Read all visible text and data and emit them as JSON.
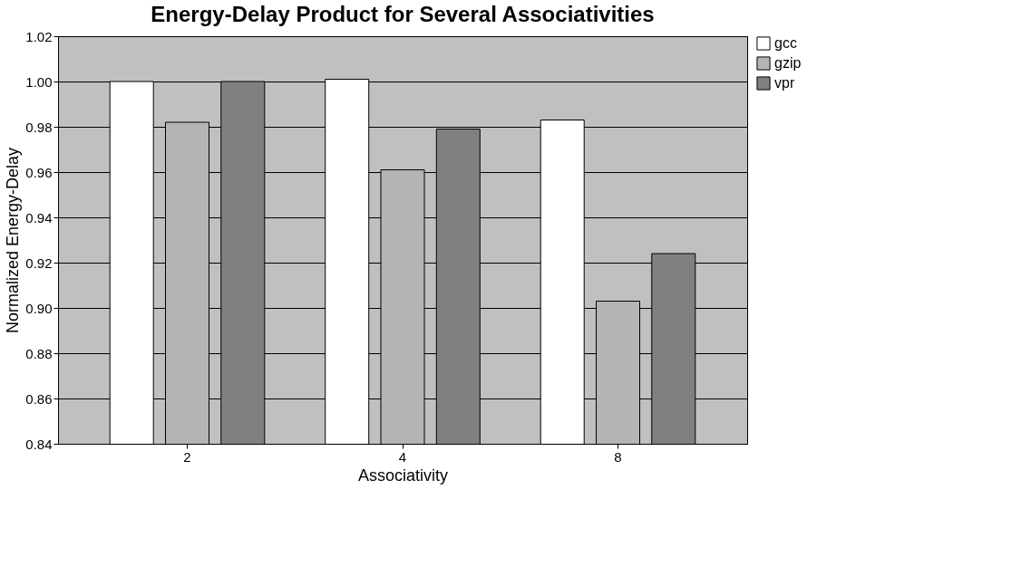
{
  "chart_data": {
    "type": "bar",
    "title": "Energy-Delay Product for Several Associativities",
    "xlabel": "Associativity",
    "ylabel": "Normalized Energy-Delay",
    "categories": [
      "2",
      "4",
      "8"
    ],
    "series": [
      {
        "name": "gcc",
        "color": "#ffffff",
        "values": [
          1.0,
          1.001,
          0.983
        ]
      },
      {
        "name": "gzip",
        "color": "#b4b4b4",
        "values": [
          0.982,
          0.961,
          0.903
        ]
      },
      {
        "name": "vpr",
        "color": "#808080",
        "values": [
          1.0,
          0.979,
          0.924
        ]
      }
    ],
    "ylim": [
      0.84,
      1.02
    ],
    "yticks": [
      0.84,
      0.86,
      0.88,
      {
        "value": 0.9,
        "label": "0.90"
      },
      0.92,
      0.94,
      0.96,
      0.98,
      {
        "value": 1.0,
        "label": "1.00"
      },
      1.02
    ],
    "grid": "y",
    "legend": "top right"
  }
}
